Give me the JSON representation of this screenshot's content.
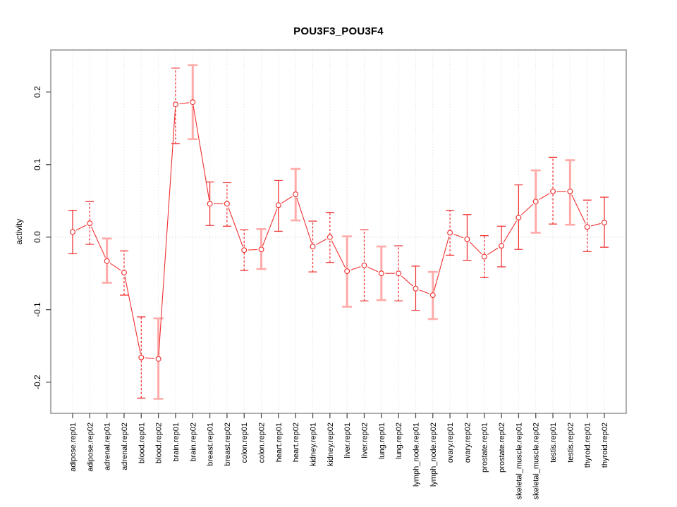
{
  "figure": {
    "background": "#ffffff"
  },
  "chart_data": {
    "type": "line",
    "title": "POU3F3_POU3F4",
    "xlabel": "",
    "ylabel": "activity",
    "ylim": [
      -0.245,
      0.26
    ],
    "ytick_values": [
      -0.2,
      -0.1,
      0.0,
      0.1,
      0.2
    ],
    "ytick_labels": [
      "-0.2",
      "-0.1",
      "0.0",
      "0.1",
      "0.2"
    ],
    "grid": {
      "vertical_per_category": "dotted",
      "zero_line": "dotted",
      "legend_position": "none"
    },
    "marker": "open-circle",
    "colors": {
      "line": "#f03030",
      "errorbar_red": "#f03030",
      "errorbar_pink": "#ffaaa8",
      "frame": "#999999",
      "gridline": "#dcdcdc",
      "zero_line": "#c9c9c9",
      "tick": "#4d4d4d"
    },
    "categories": [
      "adipose.rep01",
      "adipose.rep02",
      "adrenal.rep01",
      "adrenal.rep02",
      "blood.rep01",
      "blood.rep02",
      "brain.rep01",
      "brain.rep02",
      "breast.rep01",
      "breast.rep02",
      "colon.rep01",
      "colon.rep02",
      "heart.rep01",
      "heart.rep02",
      "kidney.rep01",
      "kidney.rep02",
      "liver.rep01",
      "liver.rep02",
      "lung.rep01",
      "lung.rep02",
      "lymph_node.rep01",
      "lymph_node.rep02",
      "ovary.rep01",
      "ovary.rep02",
      "prostate.rep01",
      "prostate.rep02",
      "skeletal_muscle.rep01",
      "skeletal_muscle.rep02",
      "testis.rep01",
      "testis.rep02",
      "thyroid.rep01",
      "thyroid.rep02"
    ],
    "series": [
      {
        "name": "activity",
        "values": [
          0.007,
          0.019,
          -0.033,
          -0.049,
          -0.166,
          -0.168,
          0.183,
          0.186,
          0.046,
          0.046,
          -0.018,
          -0.017,
          0.044,
          0.059,
          -0.013,
          0.0,
          -0.047,
          -0.039,
          -0.05,
          -0.05,
          -0.071,
          -0.08,
          0.006,
          -0.003,
          -0.027,
          -0.012,
          0.027,
          0.049,
          0.063,
          0.063,
          0.014,
          0.02
        ],
        "err_lo": [
          -0.023,
          -0.01,
          -0.063,
          -0.08,
          -0.222,
          -0.223,
          0.129,
          0.135,
          0.016,
          0.015,
          -0.046,
          -0.044,
          0.008,
          0.023,
          -0.048,
          -0.035,
          -0.096,
          -0.088,
          -0.087,
          -0.088,
          -0.101,
          -0.113,
          -0.025,
          -0.032,
          -0.056,
          -0.041,
          -0.017,
          0.006,
          0.018,
          0.017,
          -0.02,
          -0.014
        ],
        "err_hi": [
          0.037,
          0.049,
          -0.002,
          -0.019,
          -0.11,
          -0.112,
          0.233,
          0.237,
          0.076,
          0.075,
          0.01,
          0.011,
          0.078,
          0.094,
          0.022,
          0.034,
          0.001,
          0.01,
          -0.013,
          -0.012,
          -0.04,
          -0.048,
          0.037,
          0.031,
          0.002,
          0.015,
          0.072,
          0.092,
          0.11,
          0.106,
          0.051,
          0.055
        ],
        "bar_styles": [
          "solid",
          "dashed",
          "pink",
          "dashed",
          "dashed",
          "pink",
          "dashed",
          "pink",
          "solid",
          "dashed",
          "dashed",
          "pink",
          "solid",
          "pink",
          "dashed",
          "dashed",
          "pink",
          "dashed",
          "pink",
          "dashed",
          "solid",
          "pink",
          "dashed",
          "solid",
          "dashed",
          "solid",
          "solid",
          "pink",
          "dashed",
          "pink",
          "dashed",
          "solid"
        ]
      }
    ]
  }
}
